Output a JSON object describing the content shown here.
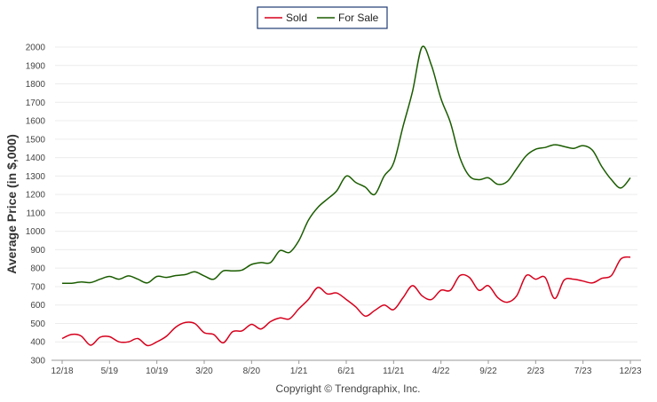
{
  "chart_data": {
    "type": "line",
    "ylabel": "Average Price (in $,000)",
    "yticks": [
      300,
      400,
      500,
      600,
      700,
      800,
      900,
      1000,
      1100,
      1200,
      1300,
      1400,
      1500,
      1600,
      1700,
      1800,
      1900,
      2000
    ],
    "ylim": [
      300,
      2050
    ],
    "xticks": [
      "12/18",
      "5/19",
      "10/19",
      "3/20",
      "8/20",
      "1/21",
      "6/21",
      "11/21",
      "4/22",
      "9/22",
      "2/23",
      "7/23",
      "12/23"
    ],
    "grid": true,
    "legend_position": "top-center",
    "series": [
      {
        "name": "Sold",
        "color": "#d6001c",
        "values": [
          418,
          440,
          432,
          382,
          425,
          428,
          400,
          400,
          418,
          380,
          400,
          430,
          480,
          505,
          500,
          450,
          440,
          395,
          455,
          460,
          495,
          470,
          510,
          530,
          525,
          580,
          630,
          695,
          660,
          665,
          630,
          590,
          540,
          570,
          600,
          575,
          640,
          705,
          650,
          630,
          680,
          680,
          760,
          750,
          680,
          705,
          640,
          615,
          650,
          760,
          740,
          750,
          635,
          735,
          740,
          730,
          720,
          745,
          760,
          850,
          860
        ]
      },
      {
        "name": "For Sale",
        "color": "#1a5c00",
        "values": [
          718,
          718,
          725,
          722,
          740,
          755,
          740,
          758,
          740,
          720,
          755,
          750,
          760,
          765,
          780,
          758,
          740,
          785,
          785,
          790,
          820,
          830,
          830,
          895,
          885,
          950,
          1060,
          1130,
          1175,
          1220,
          1300,
          1265,
          1240,
          1200,
          1300,
          1370,
          1570,
          1760,
          2000,
          1900,
          1720,
          1590,
          1400,
          1300,
          1280,
          1290,
          1255,
          1270,
          1340,
          1410,
          1445,
          1455,
          1470,
          1460,
          1450,
          1465,
          1440,
          1350,
          1280,
          1235,
          1290
        ]
      }
    ]
  },
  "copyright": "Copyright © Trendgraphix, Inc."
}
